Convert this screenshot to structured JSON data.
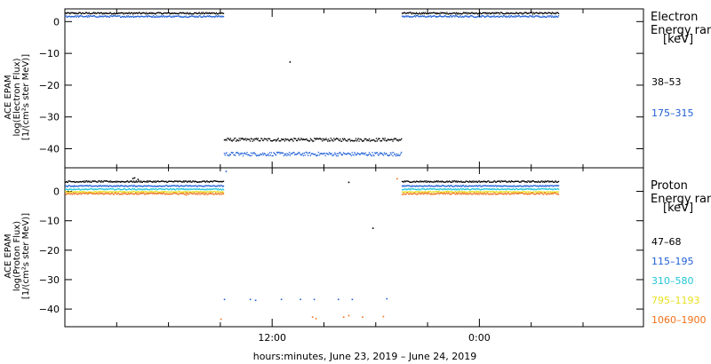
{
  "chart_data": [
    {
      "type": "scatter",
      "ylabel": [
        "ACE EPAM",
        "log(Electron Flux)",
        "[1/(cm²s ster MeV)]"
      ],
      "ylim": [
        -46,
        4
      ],
      "yticks": [
        0,
        -10,
        -20,
        -30,
        -40
      ],
      "ytick_labels": [
        "0",
        "−10",
        "−20",
        "−30",
        "−40"
      ],
      "legend_title": [
        "Electron",
        "Energy ran",
        "[keV]"
      ],
      "series": [
        {
          "name": "38–53",
          "color": "#000000",
          "segments": [
            {
              "x_start": 0.0,
              "x_end": 9.2,
              "y": 2.8,
              "spread": 0.25
            },
            {
              "x_start": 9.2,
              "x_end": 19.5,
              "y": -37.0,
              "spread": 0.5
            },
            {
              "x_start": 19.5,
              "x_end": 28.6,
              "y": 2.8,
              "spread": 0.25
            }
          ],
          "isolated": [
            {
              "x": 13.0,
              "y": -12.5
            }
          ]
        },
        {
          "name": "175–315",
          "color": "#1f5fd6",
          "segments": [
            {
              "x_start": 0.0,
              "x_end": 9.2,
              "y": 1.8,
              "spread": 0.25
            },
            {
              "x_start": 9.2,
              "x_end": 19.5,
              "y": -41.5,
              "spread": 0.6
            },
            {
              "x_start": 19.5,
              "x_end": 28.6,
              "y": 1.8,
              "spread": 0.25
            }
          ],
          "isolated": []
        }
      ]
    },
    {
      "type": "scatter",
      "ylabel": [
        "ACE EPAM",
        "log(Proton Flux)",
        "[1/(cm²s ster MeV)]"
      ],
      "ylim": [
        -46,
        8
      ],
      "yticks": [
        0,
        -10,
        -20,
        -30,
        -40
      ],
      "ytick_labels": [
        "0",
        "−10",
        "−20",
        "−30",
        "−40"
      ],
      "legend_title": [
        "Proton",
        "Energy ran",
        "[keV]"
      ],
      "series": [
        {
          "name": "47–68",
          "color": "#000000",
          "segments": [
            {
              "x_start": 0.0,
              "x_end": 9.2,
              "y": 3.5,
              "spread": 0.25
            },
            {
              "x_start": 19.5,
              "x_end": 28.6,
              "y": 3.5,
              "spread": 0.25
            }
          ],
          "isolated": [
            {
              "x": 3.9,
              "y": 4.6
            },
            {
              "x": 4.0,
              "y": 4.8
            },
            {
              "x": 4.2,
              "y": 4.3
            },
            {
              "x": 16.4,
              "y": 3.3
            },
            {
              "x": 17.8,
              "y": -12.3
            }
          ]
        },
        {
          "name": "115–195",
          "color": "#1f5fd6",
          "segments": [
            {
              "x_start": 0.0,
              "x_end": 9.2,
              "y": 2.0,
              "spread": 0.2
            },
            {
              "x_start": 19.5,
              "x_end": 28.6,
              "y": 2.0,
              "spread": 0.2
            }
          ],
          "isolated": [
            {
              "x": 9.3,
              "y": 7.0
            },
            {
              "x": 9.2,
              "y": -36.5
            },
            {
              "x": 10.7,
              "y": -36.5
            },
            {
              "x": 11.0,
              "y": -36.8
            },
            {
              "x": 12.5,
              "y": -36.5
            },
            {
              "x": 13.6,
              "y": -36.5
            },
            {
              "x": 14.4,
              "y": -36.5
            },
            {
              "x": 15.8,
              "y": -36.5
            },
            {
              "x": 16.6,
              "y": -36.5
            },
            {
              "x": 18.6,
              "y": -36.3
            }
          ]
        },
        {
          "name": "310–580",
          "color": "#22c4d6",
          "segments": [
            {
              "x_start": 0.0,
              "x_end": 9.2,
              "y": 0.9,
              "spread": 0.2
            },
            {
              "x_start": 19.5,
              "x_end": 28.6,
              "y": 0.9,
              "spread": 0.2
            }
          ],
          "isolated": []
        },
        {
          "name": "795–1193",
          "color": "#e8e020",
          "segments": [
            {
              "x_start": 0.0,
              "x_end": 9.2,
              "y": 0.0,
              "spread": 0.2
            },
            {
              "x_start": 19.5,
              "x_end": 28.6,
              "y": 0.0,
              "spread": 0.2
            }
          ],
          "isolated": []
        },
        {
          "name": "1060–1900",
          "color": "#f07018",
          "segments": [
            {
              "x_start": 0.0,
              "x_end": 9.2,
              "y": -0.6,
              "spread": 0.3
            },
            {
              "x_start": 19.5,
              "x_end": 28.6,
              "y": -0.6,
              "spread": 0.3
            }
          ],
          "isolated": [
            {
              "x": 9.0,
              "y": -43.2
            },
            {
              "x": 14.3,
              "y": -42.5
            },
            {
              "x": 14.5,
              "y": -43.0
            },
            {
              "x": 16.1,
              "y": -42.5
            },
            {
              "x": 16.4,
              "y": -42.0
            },
            {
              "x": 17.2,
              "y": -42.5
            },
            {
              "x": 18.4,
              "y": -42.3
            },
            {
              "x": 19.2,
              "y": 4.5
            },
            {
              "x": 7.0,
              "y": -1.0
            }
          ]
        }
      ]
    }
  ],
  "x_axis": {
    "xlim": [
      0,
      33.5
    ],
    "ticks_major": [
      12,
      24
    ],
    "tick_labels": [
      "12:00",
      "0:00"
    ],
    "ticks_minor": [
      3,
      6,
      9,
      15,
      18,
      21,
      27,
      30
    ],
    "xlabel": "hours:minutes, June 23, 2019 – June 24, 2019"
  }
}
